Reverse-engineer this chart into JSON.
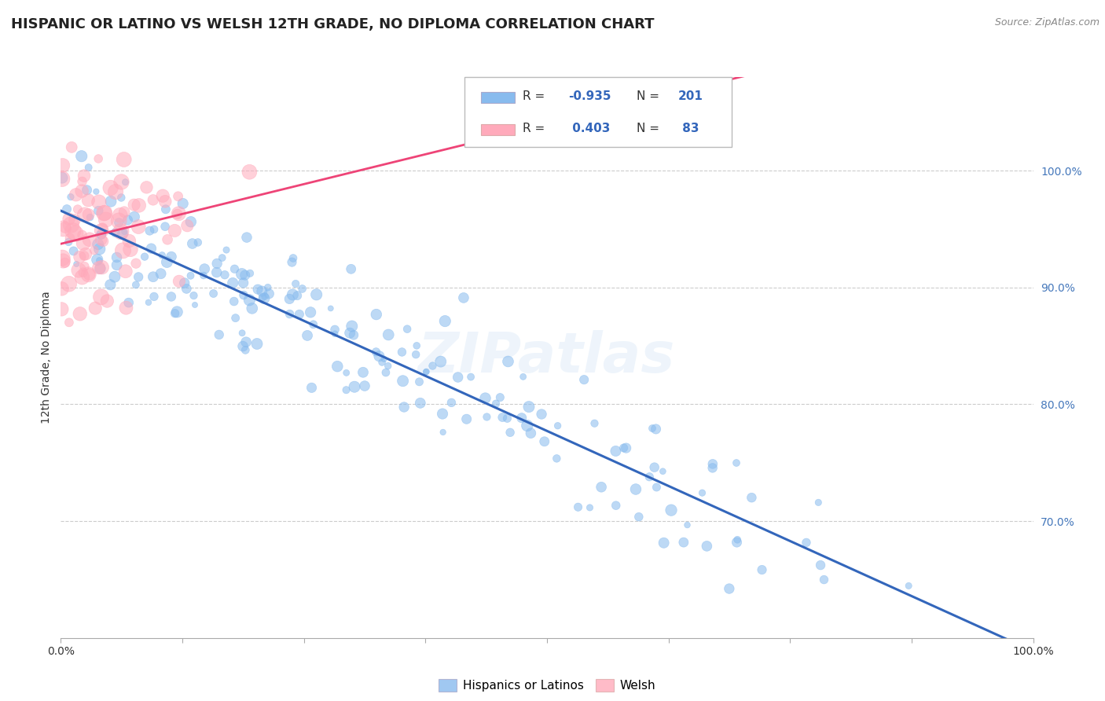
{
  "title": "HISPANIC OR LATINO VS WELSH 12TH GRADE, NO DIPLOMA CORRELATION CHART",
  "source": "Source: ZipAtlas.com",
  "ylabel": "12th Grade, No Diploma",
  "y_ticks_right": [
    "100.0%",
    "90.0%",
    "80.0%",
    "70.0%"
  ],
  "y_ticks_right_vals": [
    1.0,
    0.9,
    0.8,
    0.7
  ],
  "r_blue": -0.935,
  "n_blue": 201,
  "r_pink": 0.403,
  "n_pink": 83,
  "blue_color": "#88BBEE",
  "pink_color": "#FFAABB",
  "blue_line_color": "#3366BB",
  "pink_line_color": "#EE4477",
  "legend_label_blue": "Hispanics or Latinos",
  "legend_label_pink": "Welsh",
  "background_color": "#FFFFFF",
  "watermark": "ZIPatlas",
  "title_fontsize": 13,
  "axis_fontsize": 10,
  "tick_fontsize": 10,
  "y_min": 0.6,
  "y_max": 1.08,
  "x_min": 0.0,
  "x_max": 1.0
}
